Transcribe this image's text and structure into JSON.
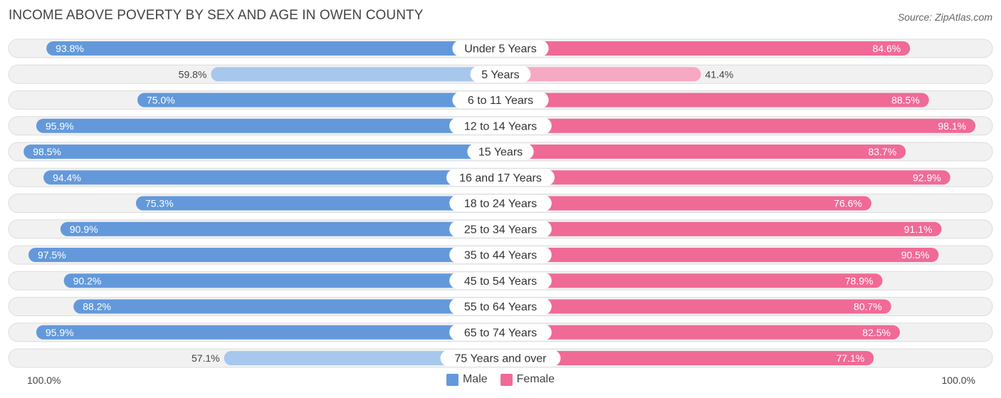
{
  "header": {
    "title": "INCOME ABOVE POVERTY BY SEX AND AGE IN OWEN COUNTY",
    "source": "Source: ZipAtlas.com"
  },
  "colors": {
    "male_strong": "#6399db",
    "male_light": "#a7c7ec",
    "female_strong": "#f06a96",
    "female_light": "#f7a9c3",
    "track": "#f1f1f1",
    "track_border": "#dddddd"
  },
  "chart_data": {
    "type": "bar",
    "orientation": "diverging-horizontal",
    "title": "INCOME ABOVE POVERTY BY SEX AND AGE IN OWEN COUNTY",
    "categories": [
      "Under 5 Years",
      "5 Years",
      "6 to 11 Years",
      "12 to 14 Years",
      "15 Years",
      "16 and 17 Years",
      "18 to 24 Years",
      "25 to 34 Years",
      "35 to 44 Years",
      "45 to 54 Years",
      "55 to 64 Years",
      "65 to 74 Years",
      "75 Years and over"
    ],
    "series": [
      {
        "name": "Male",
        "values": [
          93.8,
          59.8,
          75.0,
          95.9,
          98.5,
          94.4,
          75.3,
          90.9,
          97.5,
          90.2,
          88.2,
          95.9,
          57.1
        ],
        "labels": [
          "93.8%",
          "59.8%",
          "75.0%",
          "95.9%",
          "98.5%",
          "94.4%",
          "75.3%",
          "90.9%",
          "97.5%",
          "90.2%",
          "88.2%",
          "95.9%",
          "57.1%"
        ]
      },
      {
        "name": "Female",
        "values": [
          84.6,
          41.4,
          88.5,
          98.1,
          83.7,
          92.9,
          76.6,
          91.1,
          90.5,
          78.9,
          80.7,
          82.5,
          77.1
        ],
        "labels": [
          "84.6%",
          "41.4%",
          "88.5%",
          "98.1%",
          "83.7%",
          "92.9%",
          "76.6%",
          "91.1%",
          "90.5%",
          "78.9%",
          "80.7%",
          "82.5%",
          "77.1%"
        ]
      }
    ],
    "xlim": [
      0,
      100
    ],
    "axis_left_label": "100.0%",
    "axis_right_label": "100.0%",
    "legend": [
      "Male",
      "Female"
    ],
    "legend_position": "bottom-center"
  }
}
